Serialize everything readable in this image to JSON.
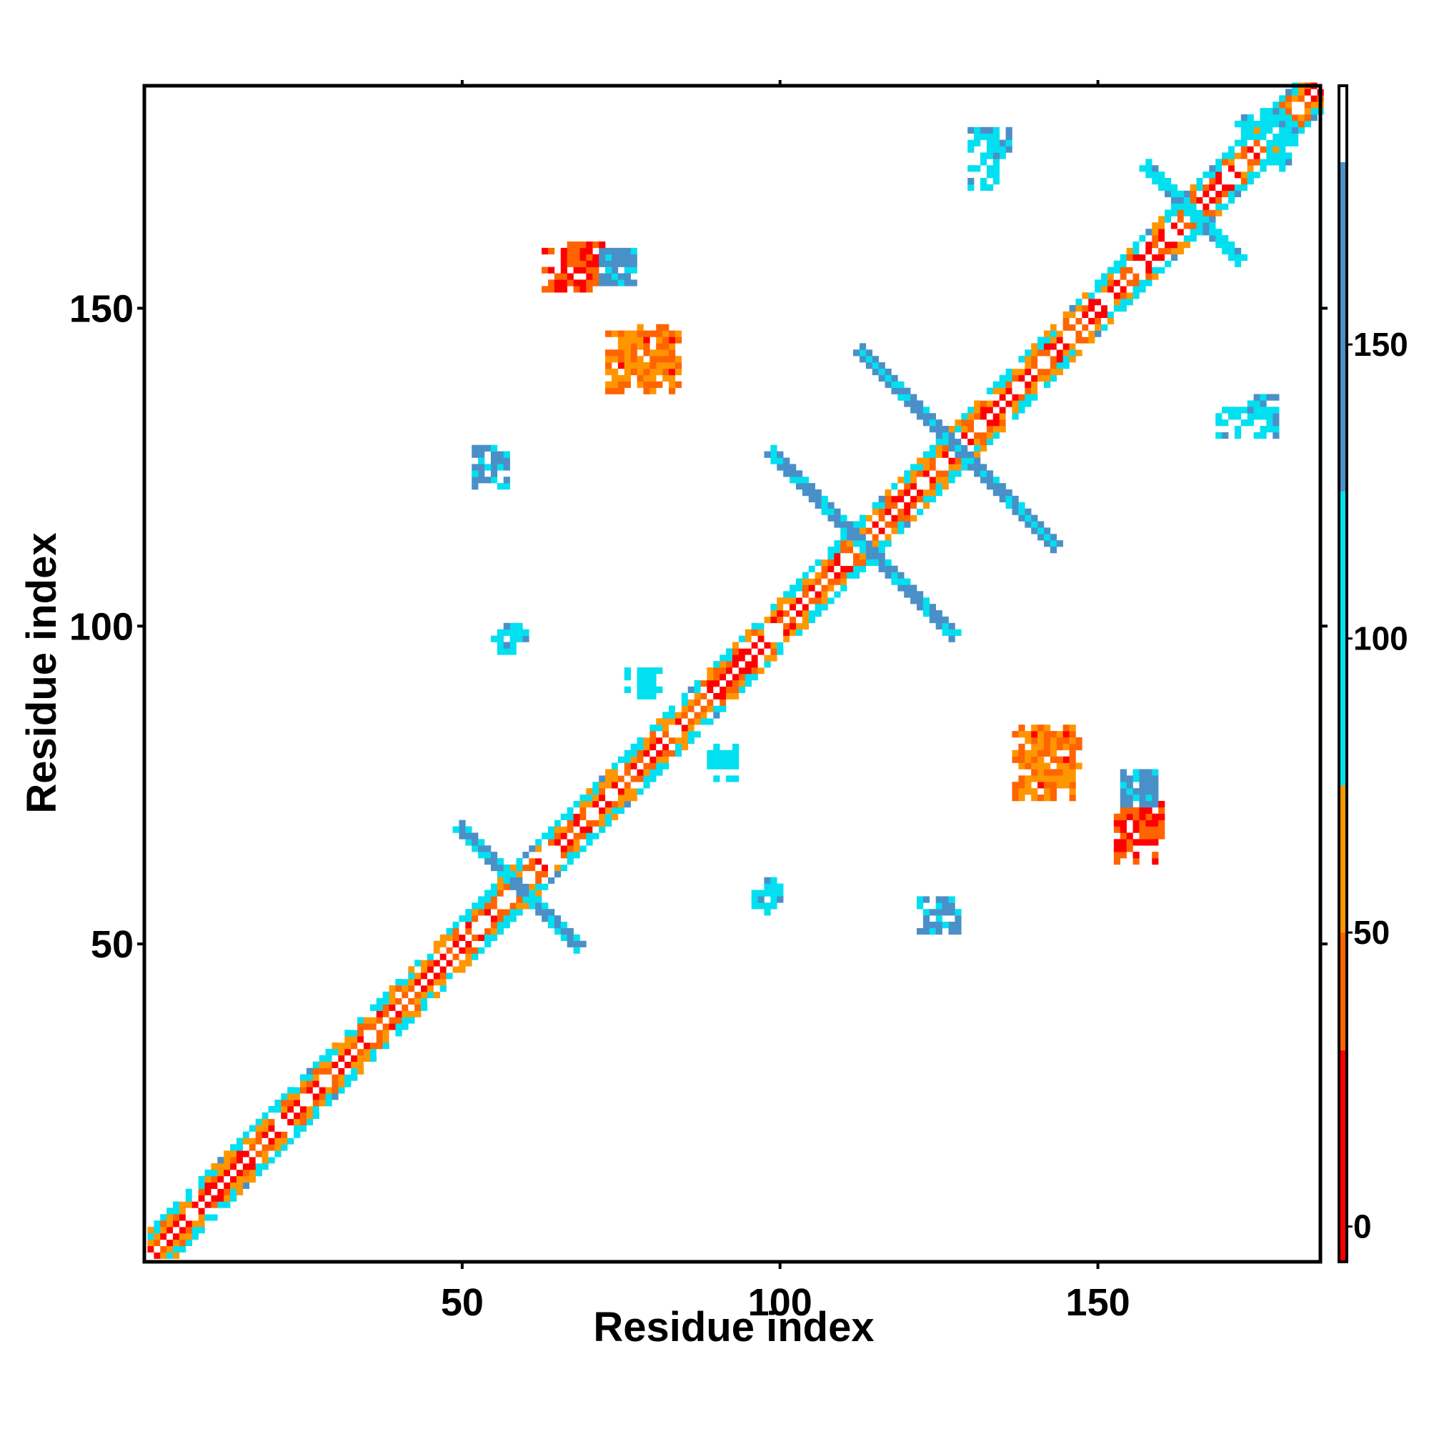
{
  "chart_data": {
    "type": "heatmap",
    "xlabel": "Residue index",
    "ylabel": "Residue index",
    "xlim": [
      1,
      185
    ],
    "ylim": [
      1,
      185
    ],
    "x_ticks": [
      50,
      100,
      150
    ],
    "y_ticks": [
      50,
      100,
      150
    ],
    "colorbar": {
      "ticks": [
        0,
        50,
        100,
        150
      ],
      "range": [
        -6,
        194
      ],
      "bands": [
        {
          "from": -6,
          "to": 30,
          "color": "#ff0000"
        },
        {
          "from": 30,
          "to": 50,
          "color": "#ff6400"
        },
        {
          "from": 50,
          "to": 75,
          "color": "#ff9600"
        },
        {
          "from": 75,
          "to": 125,
          "color": "#00e0f0"
        },
        {
          "from": 125,
          "to": 181,
          "color": "#4a90c8"
        },
        {
          "from": 181,
          "to": 194,
          "color": "#ffffff"
        }
      ]
    },
    "features": [
      {
        "kind": "diagonal",
        "from": 1,
        "to": 185
      },
      {
        "kind": "antiparallel",
        "center": [
          59,
          59
        ],
        "half_length": 9,
        "value": 135
      },
      {
        "kind": "antiparallel",
        "center": [
          113,
          113
        ],
        "half_length": 14,
        "value": 135
      },
      {
        "kind": "antiparallel",
        "center": [
          128,
          128
        ],
        "half_length": 15,
        "value": 135
      },
      {
        "kind": "antiparallel",
        "center": [
          165,
          165
        ],
        "half_length": 7,
        "value": 110
      },
      {
        "kind": "blob",
        "x": [
          73,
          77
        ],
        "y": [
          154,
          159
        ],
        "value": 130
      },
      {
        "kind": "blob",
        "x": [
          63,
          70
        ],
        "y": [
          153,
          159
        ],
        "value": 30
      },
      {
        "kind": "blob",
        "x": [
          73,
          84
        ],
        "y": [
          137,
          146
        ],
        "value": 45
      },
      {
        "kind": "blob",
        "x": [
          52,
          57
        ],
        "y": [
          122,
          127
        ],
        "value": 130
      },
      {
        "kind": "blob",
        "x": [
          138,
          147
        ],
        "y": [
          73,
          82
        ],
        "value": 50
      },
      {
        "kind": "blob",
        "x": [
          154,
          160
        ],
        "y": [
          66,
          72
        ],
        "value": 25
      },
      {
        "kind": "blob",
        "x": [
          154,
          160
        ],
        "y": [
          72,
          76
        ],
        "value": 135
      },
      {
        "kind": "blob",
        "x": [
          123,
          128
        ],
        "y": [
          52,
          57
        ],
        "value": 135
      },
      {
        "kind": "blob",
        "x": [
          96,
          100
        ],
        "y": [
          57,
          60
        ],
        "value": 110
      },
      {
        "kind": "blob",
        "x": [
          55,
          58
        ],
        "y": [
          96,
          100
        ],
        "value": 110
      },
      {
        "kind": "blob",
        "x": [
          76,
          80
        ],
        "y": [
          90,
          93
        ],
        "value": 100
      },
      {
        "kind": "blob",
        "x": [
          89,
          93
        ],
        "y": [
          78,
          81
        ],
        "value": 100
      },
      {
        "kind": "blob",
        "x": [
          176,
          181
        ],
        "y": [
          172,
          180
        ],
        "value": 110
      },
      {
        "kind": "blob",
        "x": [
          131,
          136
        ],
        "y": [
          173,
          178
        ],
        "value": 110
      },
      {
        "kind": "blob",
        "x": [
          169,
          178
        ],
        "y": [
          130,
          134
        ],
        "value": 110
      }
    ]
  }
}
